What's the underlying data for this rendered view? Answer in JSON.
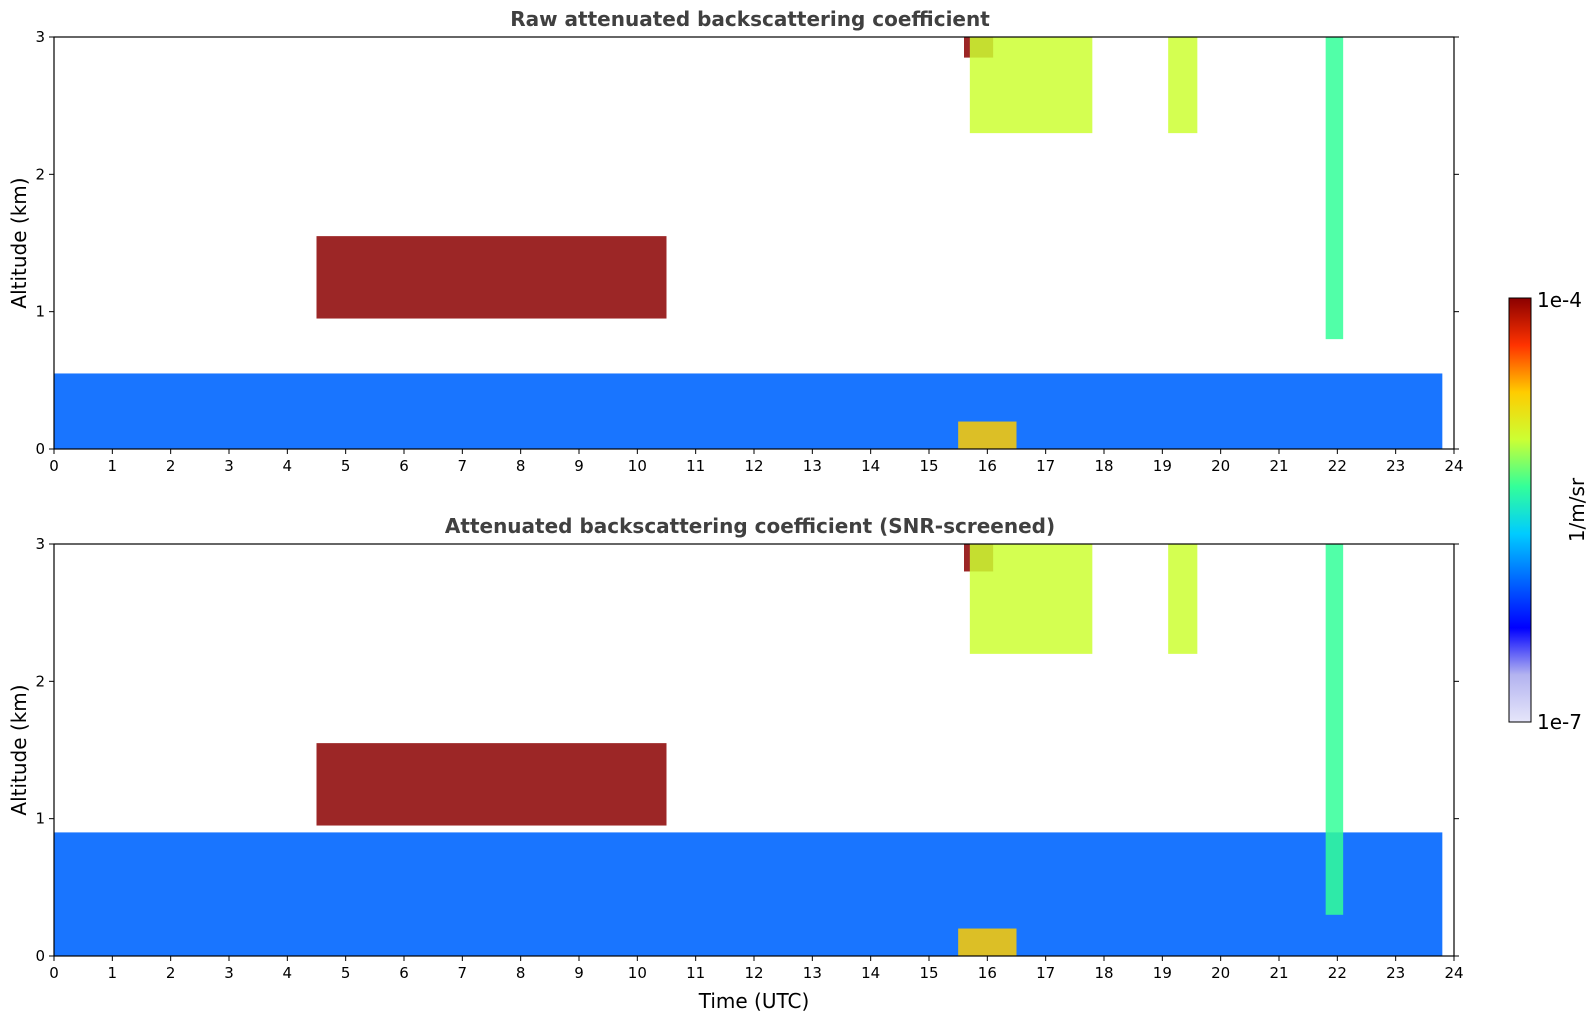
{
  "chart_data": [
    {
      "type": "heatmap",
      "title": "Raw attenuated backscattering coefficient",
      "ylabel": "Altitude (km)",
      "xlabel": "",
      "xlim": [
        0,
        24
      ],
      "ylim": [
        0,
        3
      ],
      "x_ticks": [
        "0",
        "1",
        "2",
        "3",
        "4",
        "5",
        "6",
        "7",
        "8",
        "9",
        "10",
        "11",
        "12",
        "13",
        "14",
        "15",
        "16",
        "17",
        "18",
        "19",
        "20",
        "21",
        "22",
        "23",
        "24"
      ],
      "y_ticks": [
        "0",
        "1",
        "2",
        "3"
      ],
      "data_extent_hours": [
        0,
        23.8
      ],
      "features": [
        {
          "name": "boundary layer",
          "x": [
            0,
            23.8
          ],
          "y": [
            0,
            0.55
          ],
          "level": 0.35
        },
        {
          "name": "cloud layer",
          "x": [
            4.5,
            10.5
          ],
          "y": [
            0.95,
            1.55
          ],
          "level": 0.95
        },
        {
          "name": "high cloud",
          "x": [
            15.6,
            16.1
          ],
          "y": [
            2.85,
            3.0
          ],
          "level": 1.0
        },
        {
          "name": "fall streaks",
          "x": [
            15.7,
            17.8
          ],
          "y": [
            2.3,
            3.0
          ],
          "level": 0.7
        },
        {
          "name": "fall streaks",
          "x": [
            19.1,
            19.6
          ],
          "y": [
            2.3,
            3.0
          ],
          "level": 0.65
        },
        {
          "name": "fall streak",
          "x": [
            21.8,
            22.1
          ],
          "y": [
            0.8,
            3.0
          ],
          "level": 0.6
        },
        {
          "name": "surface precipitation",
          "x": [
            15.5,
            16.5
          ],
          "y": [
            0,
            0.2
          ],
          "level": 0.75
        }
      ]
    },
    {
      "type": "heatmap",
      "title": "Attenuated backscattering coefficient (SNR-screened)",
      "ylabel": "Altitude (km)",
      "xlabel": "Time (UTC)",
      "xlim": [
        0,
        24
      ],
      "ylim": [
        0,
        3
      ],
      "x_ticks": [
        "0",
        "1",
        "2",
        "3",
        "4",
        "5",
        "6",
        "7",
        "8",
        "9",
        "10",
        "11",
        "12",
        "13",
        "14",
        "15",
        "16",
        "17",
        "18",
        "19",
        "20",
        "21",
        "22",
        "23",
        "24"
      ],
      "y_ticks": [
        "0",
        "1",
        "2",
        "3"
      ],
      "data_extent_hours": [
        0,
        23.8
      ],
      "features": [
        {
          "name": "boundary layer",
          "x": [
            0,
            23.8
          ],
          "y": [
            0,
            0.9
          ],
          "level": 0.3
        },
        {
          "name": "cloud layer",
          "x": [
            4.5,
            10.5
          ],
          "y": [
            0.95,
            1.55
          ],
          "level": 0.95
        },
        {
          "name": "high cloud",
          "x": [
            15.6,
            16.1
          ],
          "y": [
            2.8,
            3.0
          ],
          "level": 1.0
        },
        {
          "name": "fall streaks",
          "x": [
            15.7,
            17.8
          ],
          "y": [
            2.2,
            3.0
          ],
          "level": 0.7
        },
        {
          "name": "fall streaks",
          "x": [
            19.1,
            19.6
          ],
          "y": [
            2.2,
            3.0
          ],
          "level": 0.65
        },
        {
          "name": "fall streak",
          "x": [
            21.8,
            22.1
          ],
          "y": [
            0.3,
            3.0
          ],
          "level": 0.55
        },
        {
          "name": "surface precipitation",
          "x": [
            15.5,
            16.5
          ],
          "y": [
            0,
            0.2
          ],
          "level": 0.75
        }
      ]
    }
  ],
  "colorbar": {
    "label": "1/m/sr",
    "min_label": "1e-7",
    "max_label": "1e-4",
    "scale": "log",
    "colors": [
      "#e6e6fa",
      "#b3b3f0",
      "#0000ff",
      "#0066ff",
      "#00ccff",
      "#33ff99",
      "#ccff33",
      "#ffcc00",
      "#ff3300",
      "#8b0000"
    ]
  }
}
